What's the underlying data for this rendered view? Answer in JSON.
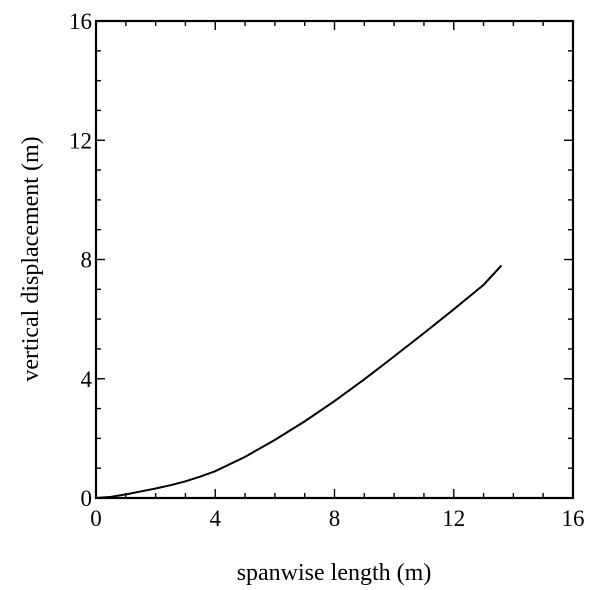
{
  "chart_data": {
    "type": "line",
    "title": "",
    "xlabel": "spanwise length (m)",
    "ylabel": "vertical displacement (m)",
    "xlim": [
      0,
      16
    ],
    "ylim": [
      0,
      16
    ],
    "xticks": [
      0,
      4,
      8,
      12,
      16
    ],
    "yticks": [
      0,
      4,
      8,
      12,
      16
    ],
    "minor_ticks_per_major": 3,
    "grid": false,
    "legend": "none",
    "series": [
      {
        "color": "#000000",
        "x": [
          0,
          0.5,
          1,
          1.5,
          2,
          2.5,
          3,
          3.5,
          4,
          5,
          6,
          7,
          8,
          9,
          10,
          11,
          12,
          13,
          13.6
        ],
        "y": [
          0,
          0.04,
          0.12,
          0.22,
          0.32,
          0.43,
          0.56,
          0.72,
          0.9,
          1.38,
          1.95,
          2.57,
          3.25,
          3.98,
          4.75,
          5.53,
          6.33,
          7.15,
          7.8
        ]
      }
    ]
  }
}
